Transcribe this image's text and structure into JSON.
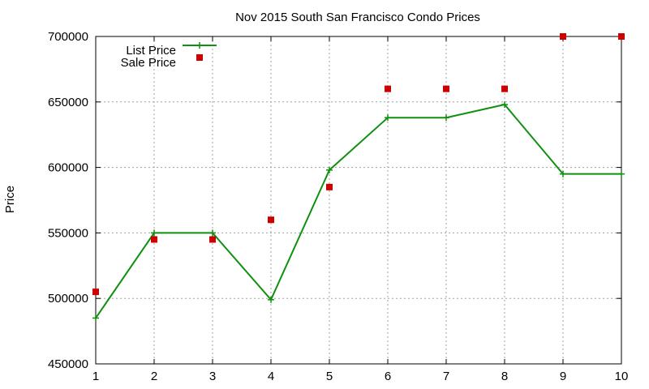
{
  "chart_data": {
    "type": "line",
    "title": "Nov 2015 South San Francisco Condo Prices",
    "xlabel": "",
    "ylabel": "Price",
    "x": [
      1,
      2,
      3,
      4,
      5,
      6,
      7,
      8,
      9,
      10
    ],
    "xlim": [
      1,
      10
    ],
    "ylim": [
      450000,
      700000
    ],
    "yticks": [
      450000,
      500000,
      550000,
      600000,
      650000,
      700000
    ],
    "xticks": [
      1,
      2,
      3,
      4,
      5,
      6,
      7,
      8,
      9,
      10
    ],
    "grid": true,
    "legend_position": "top-left",
    "series": [
      {
        "name": "List Price",
        "style": "line-with-plus-markers",
        "color": "#109010",
        "values": [
          485000,
          550000,
          550000,
          499000,
          598000,
          638000,
          638000,
          648000,
          595000,
          595000
        ]
      },
      {
        "name": "Sale Price",
        "style": "square-markers",
        "color": "#cc0000",
        "values": [
          505000,
          545000,
          545000,
          560000,
          585000,
          660000,
          660000,
          660000,
          700000,
          700000
        ]
      }
    ]
  }
}
